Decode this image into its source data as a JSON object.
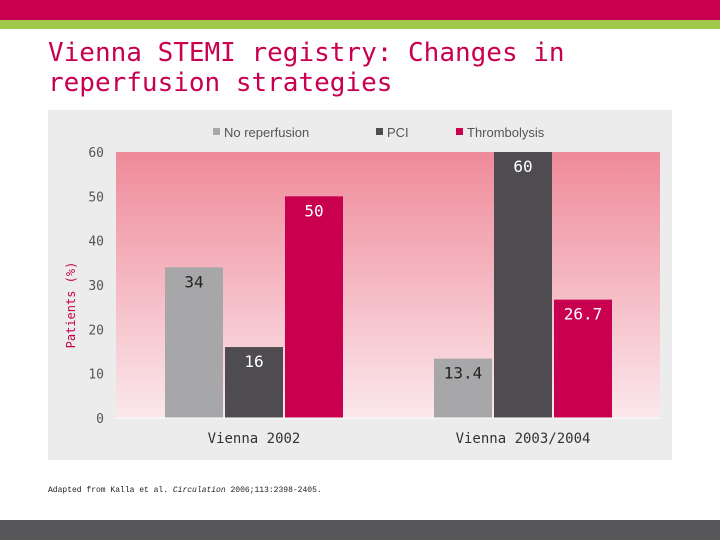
{
  "slide": {
    "title": "Vienna STEMI registry: Changes in reperfusion strategies",
    "footnote_prefix": "Adapted from Kalla et al.",
    "footnote_journal": "Circulation",
    "footnote_suffix": "2006;113:2398-2405."
  },
  "colors": {
    "accent": "#c8004f",
    "accent_green": "#9ec94a",
    "footer": "#58585a"
  },
  "chart_data": {
    "type": "bar",
    "title": "",
    "xlabel": "",
    "ylabel": "Patients (%)",
    "categories": [
      "Vienna 2002",
      "Vienna 2003/2004"
    ],
    "series": [
      {
        "name": "No reperfusion",
        "color": "#a7a7a9",
        "values": [
          34,
          13.4
        ],
        "labels": [
          "34",
          "13.4"
        ]
      },
      {
        "name": "PCI",
        "color": "#4f4c51",
        "values": [
          16,
          60
        ],
        "labels": [
          "16",
          "60"
        ]
      },
      {
        "name": "Thrombolysis",
        "color": "#c8004f",
        "values": [
          50,
          26.7
        ],
        "labels": [
          "50",
          "26.7"
        ]
      }
    ],
    "yticks": [
      0,
      10,
      20,
      30,
      40,
      50,
      60
    ],
    "ylim": [
      0,
      60
    ],
    "grid": false,
    "legend": "top",
    "background_gradient": [
      "#ef8a9a",
      "#fbe8ec"
    ]
  }
}
